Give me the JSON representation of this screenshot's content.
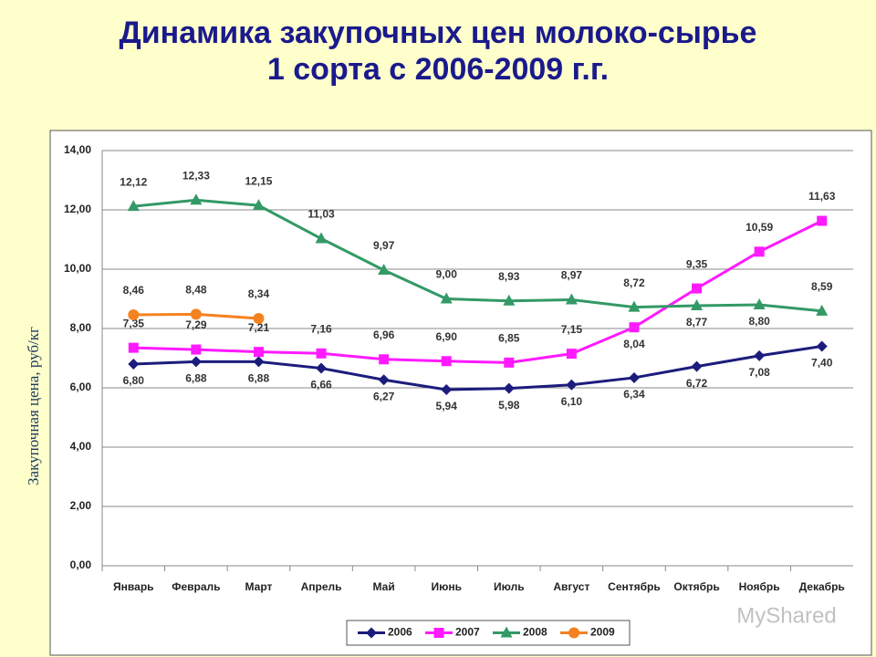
{
  "chart_data": {
    "type": "line",
    "title": [
      "Динамика закупочных цен молоко-сырье",
      "1 сорта с 2006-2009 г.г."
    ],
    "ylabel": "Закупочная цена, руб/кг",
    "watermark": "MyShared",
    "categories": [
      "Январь",
      "Февраль",
      "Март",
      "Апрель",
      "Май",
      "Июнь",
      "Июль",
      "Август",
      "Сентябрь",
      "Октябрь",
      "Ноябрь",
      "Декабрь"
    ],
    "series": [
      {
        "name": "2006",
        "color": "#1c1c7c",
        "marker": "diamond",
        "values": [
          6.8,
          6.88,
          6.88,
          6.66,
          6.27,
          5.94,
          5.98,
          6.1,
          6.34,
          6.72,
          7.08,
          7.4
        ],
        "value_labels": [
          "6,80",
          "6,88",
          "6,88",
          "6,66",
          "6,27",
          "5,94",
          "5,98",
          "6,10",
          "6,34",
          "6,72",
          "7,08",
          "7,40"
        ]
      },
      {
        "name": "2007",
        "color": "#ff1aff",
        "marker": "square",
        "values": [
          7.35,
          7.29,
          7.21,
          7.16,
          6.96,
          6.9,
          6.85,
          7.15,
          8.04,
          9.35,
          10.59,
          11.63
        ],
        "value_labels": [
          "7,35",
          "7,29",
          "7,21",
          "7,16",
          "6,96",
          "6,90",
          "6,85",
          "7,15",
          "8,04",
          "9,35",
          "10,59",
          "11,63"
        ]
      },
      {
        "name": "2008",
        "color": "#339966",
        "marker": "triangle",
        "values": [
          12.12,
          12.33,
          12.15,
          11.03,
          9.97,
          9.0,
          8.93,
          8.97,
          8.72,
          8.77,
          8.8,
          8.59
        ],
        "value_labels": [
          "12,12",
          "12,33",
          "12,15",
          "11,03",
          "9,97",
          "9,00",
          "8,93",
          "8,97",
          "8,72",
          "8,77",
          "8,80",
          "8,59"
        ]
      },
      {
        "name": "2009",
        "color": "#f58220",
        "marker": "circle",
        "values": [
          8.46,
          8.48,
          8.34,
          null,
          null,
          null,
          null,
          null,
          null,
          null,
          null,
          null
        ],
        "value_labels": [
          "8,46",
          "8,48",
          "8,34",
          null,
          null,
          null,
          null,
          null,
          null,
          null,
          null,
          null
        ]
      }
    ],
    "ylim": [
      0,
      14
    ],
    "yticks": [
      {
        "value": 0,
        "label": "0,00"
      },
      {
        "value": 2,
        "label": "2,00"
      },
      {
        "value": 4,
        "label": "4,00"
      },
      {
        "value": 6,
        "label": "6,00"
      },
      {
        "value": 8,
        "label": "8,00"
      },
      {
        "value": 10,
        "label": "10,00"
      },
      {
        "value": 12,
        "label": "12,00"
      },
      {
        "value": 14,
        "label": "14,00"
      }
    ],
    "grid": true,
    "legend": "bottom"
  }
}
